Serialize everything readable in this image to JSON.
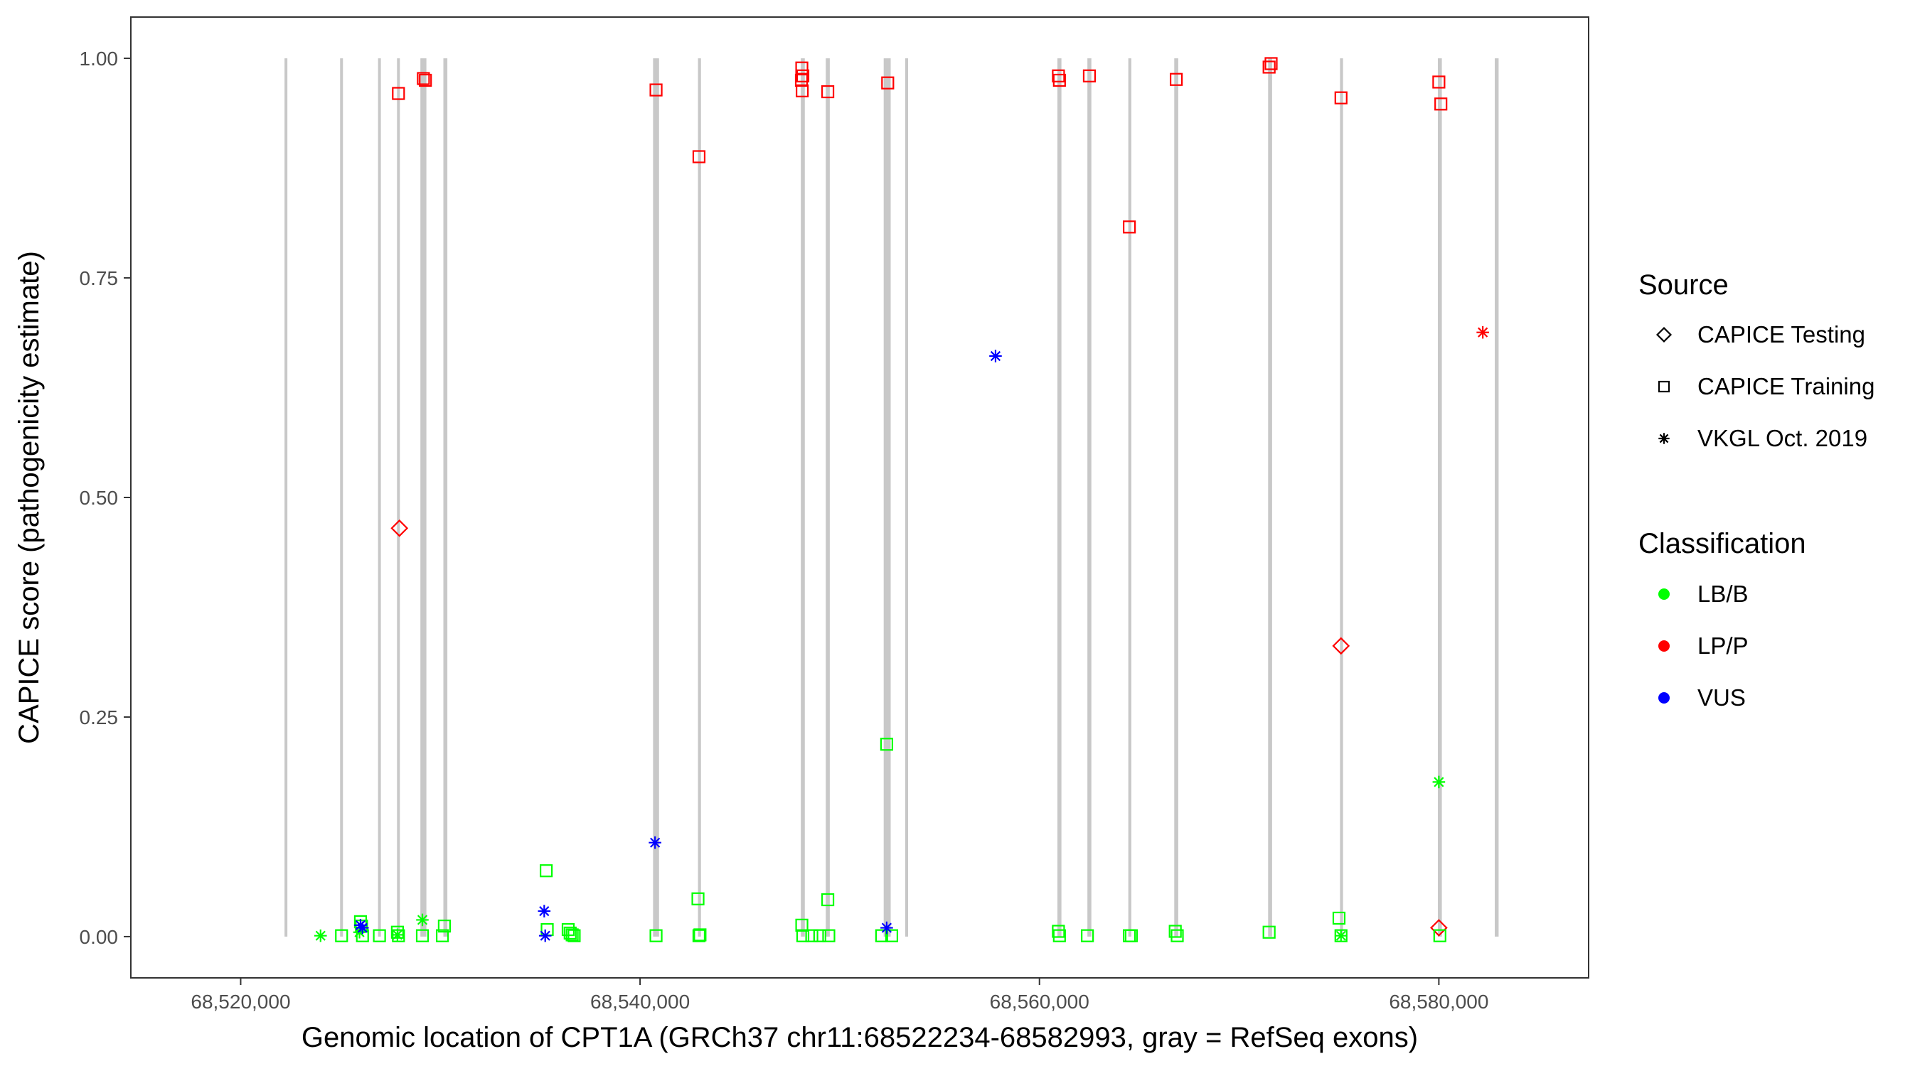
{
  "chart_data": {
    "type": "scatter",
    "title": "",
    "xlabel": "Genomic location of CPT1A (GRCh37 chr11:68522234-68582993, gray = RefSeq exons)",
    "ylabel": "CAPICE score (pathogenicity estimate)",
    "xlim": [
      68514500,
      68587500
    ],
    "ylim": [
      -0.047,
      1.047
    ],
    "x_ticks": [
      68520000,
      68540000,
      68560000,
      68580000
    ],
    "x_tick_labels": [
      "68,520,000",
      "68,540,000",
      "68,560,000",
      "68,580,000"
    ],
    "y_ticks": [
      0,
      0.25,
      0.5,
      0.75,
      1.0
    ],
    "y_tick_labels": [
      "0.00",
      "0.25",
      "0.50",
      "0.75",
      "1.00"
    ],
    "grid": false,
    "exon_color": "#c8c8c8",
    "exons": [
      [
        68522234,
        68522300
      ],
      [
        68525000,
        68525100
      ],
      [
        68526900,
        68527000
      ],
      [
        68527850,
        68527950
      ],
      [
        68529000,
        68529300
      ],
      [
        68530150,
        68530350
      ],
      [
        68540650,
        68540950
      ],
      [
        68542900,
        68543050
      ],
      [
        68548050,
        68548250
      ],
      [
        68549300,
        68549500
      ],
      [
        68552200,
        68552550
      ],
      [
        68553300,
        68553400
      ],
      [
        68560900,
        68561100
      ],
      [
        68562400,
        68562600
      ],
      [
        68564450,
        68564600
      ],
      [
        68566750,
        68566950
      ],
      [
        68571450,
        68571650
      ],
      [
        68575050,
        68575200
      ],
      [
        68579950,
        68580150
      ],
      [
        68582800,
        68582993
      ]
    ],
    "legend": {
      "position": "right",
      "source": {
        "title": "Source",
        "items": [
          {
            "label": "CAPICE Testing",
            "shape": "diamond"
          },
          {
            "label": "CAPICE Training",
            "shape": "square"
          },
          {
            "label": "VKGL Oct. 2019",
            "shape": "asterisk"
          }
        ]
      },
      "classification": {
        "title": "Classification",
        "items": [
          {
            "label": "LB/B",
            "color": "#00ff00"
          },
          {
            "label": "LP/P",
            "color": "#ff0000"
          },
          {
            "label": "VUS",
            "color": "#0000ff"
          }
        ]
      }
    },
    "series": [
      {
        "source": "CAPICE Training",
        "classification": "LP/P",
        "shape": "square",
        "color": "#ff0000",
        "points": [
          [
            68527900,
            0.96
          ],
          [
            68529150,
            0.977
          ],
          [
            68529250,
            0.975
          ],
          [
            68540800,
            0.964
          ],
          [
            68542950,
            0.888
          ],
          [
            68548100,
            0.989
          ],
          [
            68548150,
            0.98
          ],
          [
            68548080,
            0.975
          ],
          [
            68548120,
            0.963
          ],
          [
            68549400,
            0.962
          ],
          [
            68552400,
            0.972
          ],
          [
            68560950,
            0.98
          ],
          [
            68561000,
            0.975
          ],
          [
            68562500,
            0.98
          ],
          [
            68564500,
            0.808
          ],
          [
            68566850,
            0.976
          ],
          [
            68571500,
            0.99
          ],
          [
            68571600,
            0.994
          ],
          [
            68575100,
            0.955
          ],
          [
            68580000,
            0.973
          ],
          [
            68580100,
            0.948
          ]
        ]
      },
      {
        "source": "CAPICE Testing",
        "classification": "LP/P",
        "shape": "diamond",
        "color": "#ff0000",
        "points": [
          [
            68527950,
            0.465
          ],
          [
            68575100,
            0.331
          ],
          [
            68580000,
            0.01
          ]
        ]
      },
      {
        "source": "VKGL Oct. 2019",
        "classification": "LP/P",
        "shape": "asterisk",
        "color": "#ff0000",
        "points": [
          [
            68582200,
            0.688
          ]
        ]
      },
      {
        "source": "CAPICE Training",
        "classification": "LB/B",
        "shape": "square",
        "color": "#00ff00",
        "points": [
          [
            68525050,
            0.001
          ],
          [
            68526000,
            0.017
          ],
          [
            68526050,
            0.012
          ],
          [
            68526100,
            0.001
          ],
          [
            68526950,
            0.001
          ],
          [
            68527850,
            0.005
          ],
          [
            68527900,
            0.001
          ],
          [
            68529100,
            0.001
          ],
          [
            68530200,
            0.012
          ],
          [
            68530100,
            0.001
          ],
          [
            68535300,
            0.075
          ],
          [
            68535350,
            0.008
          ],
          [
            68536400,
            0.008
          ],
          [
            68536500,
            0.004
          ],
          [
            68536600,
            0.002
          ],
          [
            68536700,
            0.001
          ],
          [
            68540800,
            0.001
          ],
          [
            68542900,
            0.043
          ],
          [
            68542950,
            0.001
          ],
          [
            68543000,
            0.002
          ],
          [
            68548100,
            0.013
          ],
          [
            68548150,
            0.001
          ],
          [
            68548600,
            0.001
          ],
          [
            68549000,
            0.001
          ],
          [
            68549400,
            0.042
          ],
          [
            68549450,
            0.001
          ],
          [
            68552100,
            0.001
          ],
          [
            68552350,
            0.219
          ],
          [
            68552600,
            0.001
          ],
          [
            68560950,
            0.006
          ],
          [
            68561000,
            0.001
          ],
          [
            68562400,
            0.001
          ],
          [
            68564500,
            0.001
          ],
          [
            68564600,
            0.001
          ],
          [
            68566800,
            0.006
          ],
          [
            68566900,
            0.001
          ],
          [
            68571500,
            0.005
          ],
          [
            68575000,
            0.021
          ],
          [
            68575100,
            0.001
          ],
          [
            68580050,
            0.001
          ]
        ]
      },
      {
        "source": "VKGL Oct. 2019",
        "classification": "LB/B",
        "shape": "asterisk",
        "color": "#00ff00",
        "points": [
          [
            68524000,
            0.001
          ],
          [
            68525950,
            0.005
          ],
          [
            68527850,
            0.002
          ],
          [
            68529100,
            0.019
          ],
          [
            68575100,
            0.001
          ],
          [
            68580000,
            0.176
          ]
        ]
      },
      {
        "source": "VKGL Oct. 2019",
        "classification": "VUS",
        "shape": "asterisk",
        "color": "#0000ff",
        "points": [
          [
            68526000,
            0.013
          ],
          [
            68526100,
            0.01
          ],
          [
            68535200,
            0.029
          ],
          [
            68535250,
            0.001
          ],
          [
            68540750,
            0.107
          ],
          [
            68552350,
            0.01
          ],
          [
            68557800,
            0.661
          ]
        ]
      }
    ]
  }
}
